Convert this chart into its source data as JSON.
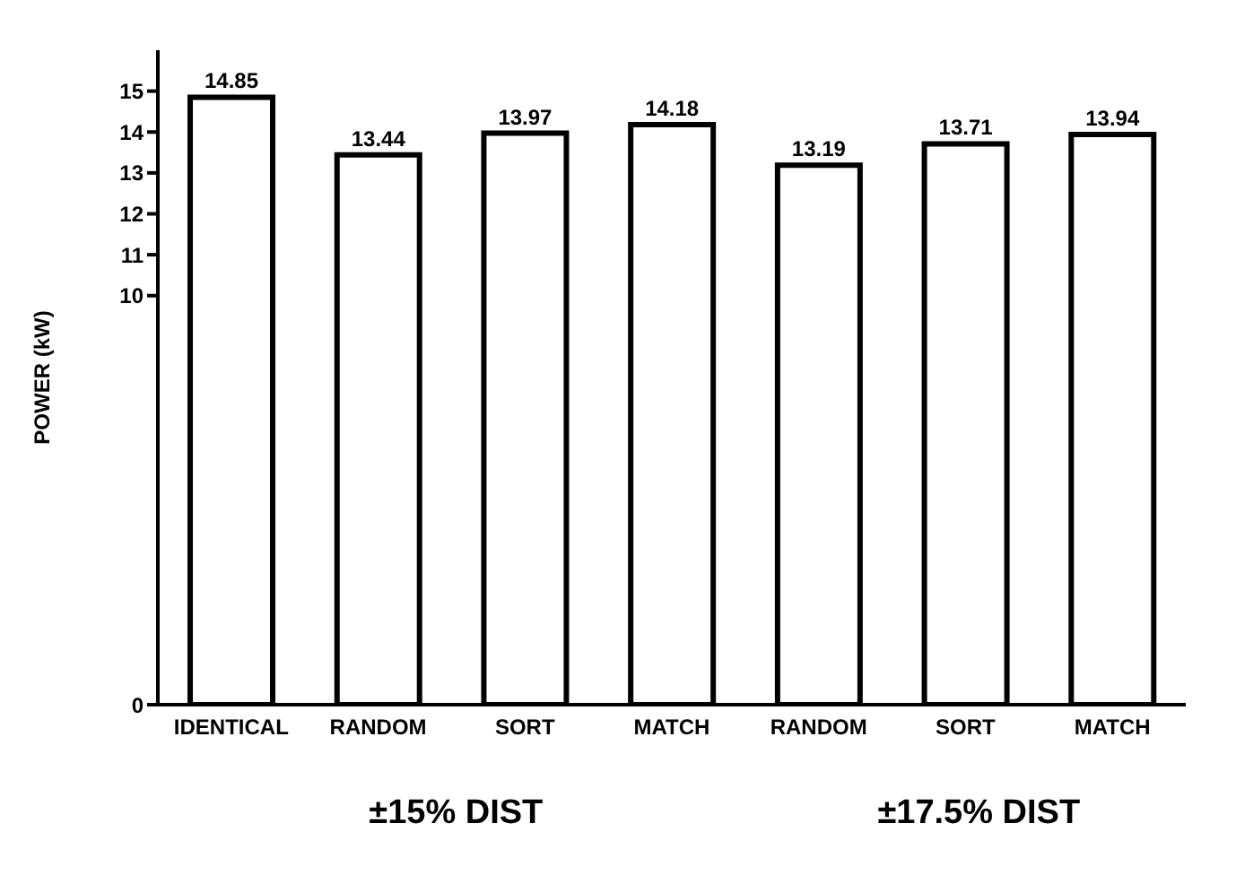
{
  "chart_data": {
    "type": "bar",
    "ylabel": "POWER (kW)",
    "categories": [
      "IDENTICAL",
      "RANDOM",
      "SORT",
      "MATCH",
      "RANDOM",
      "SORT",
      "MATCH"
    ],
    "values": [
      14.85,
      13.44,
      13.97,
      14.18,
      13.19,
      13.71,
      13.94
    ],
    "color": "#000000",
    "ylim": [
      0,
      16
    ],
    "yticks": [
      0,
      10,
      11,
      12,
      13,
      14,
      15
    ],
    "data_labels": true,
    "grid": false,
    "annotations": [
      "±15% DIST",
      "±17.5% DIST"
    ]
  }
}
